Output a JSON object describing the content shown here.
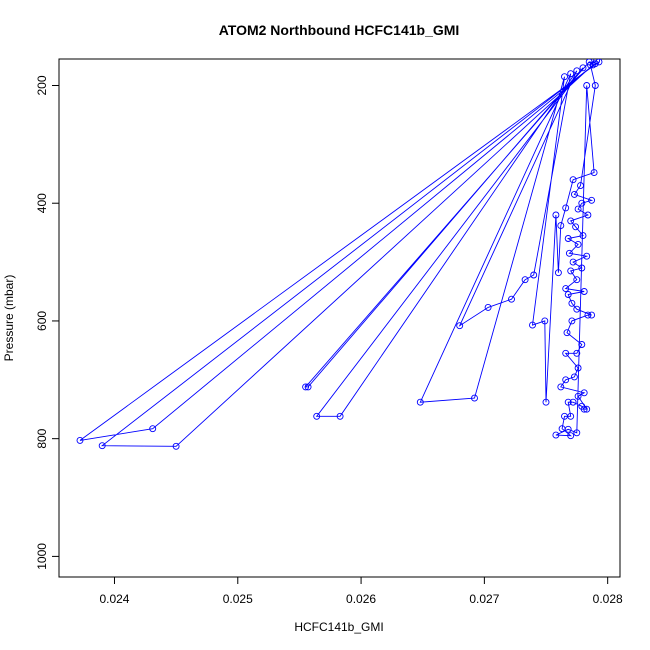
{
  "chart_data": {
    "type": "scatter",
    "title": "ATOM2 Northbound HCFC141b_GMI",
    "xlabel": "HCFC141b_GMI",
    "ylabel": "Pressure (mbar)",
    "xlim": [
      0.02355,
      0.0281
    ],
    "ylim": [
      1035,
      155
    ],
    "y_reversed": true,
    "grid": false,
    "legend": "none",
    "x_ticks": [
      0.024,
      0.025,
      0.026,
      0.027,
      0.028
    ],
    "x_tick_labels": [
      "0.024",
      "0.025",
      "0.026",
      "0.027",
      "0.028"
    ],
    "y_ticks": [
      200,
      400,
      600,
      800,
      1000
    ],
    "y_tick_labels": [
      "200",
      "400",
      "600",
      "800",
      "1000"
    ],
    "series": [
      {
        "color": "#0000ff",
        "marker": "open-circle",
        "connected": true,
        "points": [
          [
            0.02793,
            160
          ],
          [
            0.02372,
            803
          ],
          [
            0.02431,
            783
          ],
          [
            0.0279,
            163
          ],
          [
            0.0239,
            812
          ],
          [
            0.0245,
            813
          ],
          [
            0.02788,
            165
          ],
          [
            0.02785,
            160
          ],
          [
            0.02555,
            712
          ],
          [
            0.02557,
            712
          ],
          [
            0.0278,
            170
          ],
          [
            0.02564,
            762
          ],
          [
            0.02583,
            762
          ],
          [
            0.02775,
            175
          ],
          [
            0.0268,
            608
          ],
          [
            0.02703,
            577
          ],
          [
            0.02722,
            563
          ],
          [
            0.02733,
            530
          ],
          [
            0.0274,
            522
          ],
          [
            0.0277,
            180
          ],
          [
            0.02648,
            738
          ],
          [
            0.02692,
            731
          ],
          [
            0.02765,
            185
          ],
          [
            0.02739,
            607
          ],
          [
            0.02749,
            600
          ],
          [
            0.0275,
            738
          ],
          [
            0.02758,
            420
          ],
          [
            0.0276,
            518
          ],
          [
            0.02762,
            438
          ],
          [
            0.02766,
            408
          ],
          [
            0.02772,
            360
          ],
          [
            0.02789,
            348
          ],
          [
            0.02783,
            200
          ],
          [
            0.02775,
            790
          ],
          [
            0.02768,
            784
          ],
          [
            0.02758,
            794
          ],
          [
            0.0277,
            795
          ],
          [
            0.02763,
            783
          ],
          [
            0.02765,
            762
          ],
          [
            0.0277,
            762
          ],
          [
            0.02768,
            738
          ],
          [
            0.02772,
            738
          ],
          [
            0.02779,
            745
          ],
          [
            0.02781,
            750
          ],
          [
            0.02783,
            750
          ],
          [
            0.02776,
            728
          ],
          [
            0.02781,
            722
          ],
          [
            0.02762,
            712
          ],
          [
            0.02766,
            700
          ],
          [
            0.02773,
            695
          ],
          [
            0.02776,
            680
          ],
          [
            0.02766,
            655
          ],
          [
            0.02775,
            655
          ],
          [
            0.02779,
            640
          ],
          [
            0.02767,
            620
          ],
          [
            0.02771,
            600
          ],
          [
            0.02784,
            590
          ],
          [
            0.02787,
            590
          ],
          [
            0.02775,
            580
          ],
          [
            0.02771,
            570
          ],
          [
            0.02768,
            555
          ],
          [
            0.02781,
            550
          ],
          [
            0.02766,
            545
          ],
          [
            0.02775,
            530
          ],
          [
            0.0277,
            515
          ],
          [
            0.02779,
            510
          ],
          [
            0.02772,
            500
          ],
          [
            0.02783,
            490
          ],
          [
            0.02769,
            485
          ],
          [
            0.02776,
            470
          ],
          [
            0.02768,
            460
          ],
          [
            0.0278,
            455
          ],
          [
            0.02774,
            440
          ],
          [
            0.0277,
            430
          ],
          [
            0.02784,
            420
          ],
          [
            0.02776,
            410
          ],
          [
            0.02779,
            400
          ],
          [
            0.02787,
            395
          ],
          [
            0.02773,
            385
          ],
          [
            0.02778,
            370
          ],
          [
            0.0279,
            200
          ],
          [
            0.02786,
            165
          ],
          [
            0.02791,
            158
          ]
        ]
      }
    ]
  }
}
